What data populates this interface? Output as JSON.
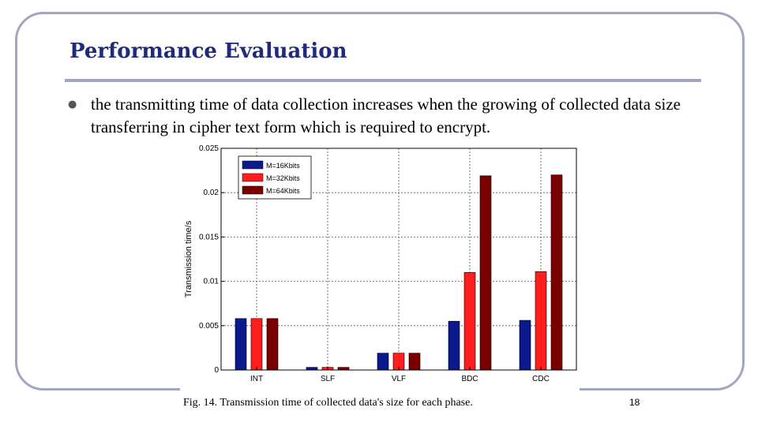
{
  "slide": {
    "title": "Performance Evaluation",
    "bullet_text": "the transmitting time of data collection increases when the growing of collected data size transferring in cipher text form which is required to encrypt.",
    "caption": "Fig. 14.   Transmission time of collected data's size for each phase.",
    "page_number": "18"
  },
  "colors": {
    "title": "#1f2a78",
    "frame": "#a3a6c0",
    "series": [
      "#0a1a8c",
      "#ff1e1e",
      "#7a0000"
    ]
  },
  "chart_data": {
    "type": "bar",
    "title": "",
    "xlabel": "",
    "ylabel": "Transmission time/s",
    "categories": [
      "INT",
      "SLF",
      "VLF",
      "BDC",
      "CDC"
    ],
    "series": [
      {
        "name": "M=16Kbits",
        "values": [
          0.0058,
          0.0003,
          0.0019,
          0.0055,
          0.0056
        ]
      },
      {
        "name": "M=32Kbits",
        "values": [
          0.0058,
          0.0003,
          0.0019,
          0.011,
          0.0111
        ]
      },
      {
        "name": "M=64Kbits",
        "values": [
          0.0058,
          0.0003,
          0.0019,
          0.0219,
          0.022
        ]
      }
    ],
    "ylim": [
      0,
      0.025
    ],
    "yticks": [
      "0",
      "0.005",
      "0.01",
      "0.015",
      "0.02",
      "0.025"
    ],
    "grid": true,
    "legend": "top-left"
  }
}
